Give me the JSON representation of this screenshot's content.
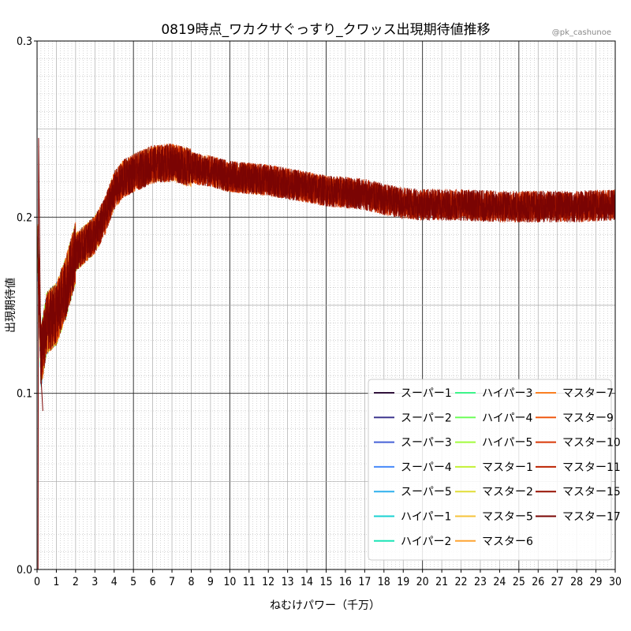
{
  "chart_data": {
    "type": "line",
    "title": "0819時点_ワカクサぐっすり_クワッス出現期待値推移",
    "credit": "@pk_cashunoe",
    "xlabel": "ねむけパワー（千万）",
    "ylabel": "出現期待値",
    "xlim": [
      0,
      30
    ],
    "ylim": [
      0.0,
      0.3
    ],
    "x_ticks": [
      0,
      1,
      2,
      3,
      4,
      5,
      6,
      7,
      8,
      9,
      10,
      11,
      12,
      13,
      14,
      15,
      16,
      17,
      18,
      19,
      20,
      21,
      22,
      23,
      24,
      25,
      26,
      27,
      28,
      29,
      30
    ],
    "y_ticks": [
      "0.0",
      "0.1",
      "0.2",
      "0.3"
    ],
    "y_tick_values": [
      0.0,
      0.1,
      0.2,
      0.3
    ],
    "grid": true,
    "legend_position": "lower-right",
    "legend_columns": 3,
    "series": [
      {
        "name": "スーパー1",
        "color": "#30123b"
      },
      {
        "name": "スーパー2",
        "color": "#3e378f"
      },
      {
        "name": "スーパー3",
        "color": "#4662d7"
      },
      {
        "name": "スーパー4",
        "color": "#4689fa"
      },
      {
        "name": "スーパー5",
        "color": "#2eb0ed"
      },
      {
        "name": "ハイパー1",
        "color": "#1ad2d2"
      },
      {
        "name": "ハイパー2",
        "color": "#1ae4b6"
      },
      {
        "name": "ハイパー3",
        "color": "#3df58a"
      },
      {
        "name": "ハイパー4",
        "color": "#6efd5a"
      },
      {
        "name": "ハイパー5",
        "color": "#a2fc3c"
      },
      {
        "name": "マスター1",
        "color": "#c3f134"
      },
      {
        "name": "マスター2",
        "color": "#e1dd37"
      },
      {
        "name": "マスター5",
        "color": "#f6c33a"
      },
      {
        "name": "マスター6",
        "color": "#fea431"
      },
      {
        "name": "マスター7",
        "color": "#fb8022"
      },
      {
        "name": "マスター9",
        "color": "#ef5911"
      },
      {
        "name": "マスター10",
        "color": "#d93806"
      },
      {
        "name": "マスター11",
        "color": "#bc2201"
      },
      {
        "name": "マスター15",
        "color": "#961001"
      },
      {
        "name": "マスター17",
        "color": "#7a0403"
      }
    ],
    "profile": {
      "description_x": [
        0,
        0.2,
        0.5,
        1.0,
        1.5,
        2.0,
        2.5,
        3.0,
        3.5,
        4.0,
        4.5,
        5.0,
        6.0,
        7.0,
        8.0,
        9.0,
        10.0,
        11.0,
        12.0,
        13.0,
        14.0,
        15.0,
        16.0,
        17.0,
        18.0,
        19.0,
        20.0,
        22.0,
        24.0,
        26.0,
        28.0,
        30.0
      ],
      "mean_y": [
        0.2,
        0.12,
        0.14,
        0.145,
        0.16,
        0.18,
        0.185,
        0.19,
        0.2,
        0.215,
        0.222,
        0.225,
        0.23,
        0.231,
        0.228,
        0.226,
        0.223,
        0.222,
        0.221,
        0.219,
        0.217,
        0.215,
        0.214,
        0.213,
        0.21,
        0.208,
        0.207,
        0.207,
        0.206,
        0.206,
        0.206,
        0.207
      ]
    }
  }
}
